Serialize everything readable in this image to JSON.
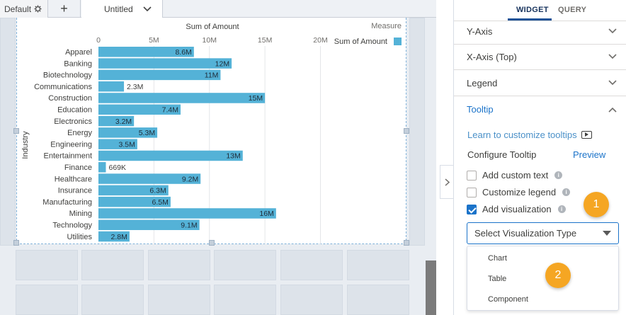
{
  "tabs": {
    "default_label": "Default",
    "add_label": "+",
    "untitled_label": "Untitled"
  },
  "panel": {
    "tabs": [
      "WIDGET",
      "QUERY"
    ],
    "sections": [
      "Y-Axis",
      "X-Axis (Top)",
      "Legend",
      "Tooltip"
    ],
    "learn_link": "Learn to customize tooltips",
    "configure_title": "Configure Tooltip",
    "preview_label": "Preview",
    "checkboxes": [
      {
        "label": "Add custom text",
        "checked": false
      },
      {
        "label": "Customize legend",
        "checked": false
      },
      {
        "label": "Add visualization",
        "checked": true
      }
    ],
    "select_placeholder": "Select Visualization Type",
    "dropdown_options": [
      "Chart",
      "Table",
      "Component"
    ],
    "badges": [
      "1",
      "2"
    ]
  },
  "colors": {
    "bar": "#54b2d7",
    "accent": "#1b73c9",
    "badge": "#f5a623"
  },
  "chart_data": {
    "type": "bar",
    "orientation": "horizontal",
    "title": "Sum of Amount",
    "xlabel": "",
    "ylabel": "Industry",
    "legend_title": "Measure",
    "legend_entry": "Sum of Amount",
    "legend_position": "top-right",
    "xlim": [
      0,
      20000000
    ],
    "x_ticks": [
      0,
      5000000,
      10000000,
      15000000,
      20000000
    ],
    "x_tick_labels": [
      "0",
      "5M",
      "10M",
      "15M",
      "20M"
    ],
    "categories": [
      "Apparel",
      "Banking",
      "Biotechnology",
      "Communications",
      "Construction",
      "Education",
      "Electronics",
      "Energy",
      "Engineering",
      "Entertainment",
      "Finance",
      "Healthcare",
      "Insurance",
      "Manufacturing",
      "Mining",
      "Technology",
      "Utilities"
    ],
    "values": [
      8600000,
      12000000,
      11000000,
      2300000,
      15000000,
      7400000,
      3200000,
      5300000,
      3500000,
      13000000,
      669000,
      9200000,
      6300000,
      6500000,
      16000000,
      9100000,
      2800000
    ],
    "value_labels": [
      "8.6M",
      "12M",
      "11M",
      "2.3M",
      "15M",
      "7.4M",
      "3.2M",
      "5.3M",
      "3.5M",
      "13M",
      "669K",
      "9.2M",
      "6.3M",
      "6.5M",
      "16M",
      "9.1M",
      "2.8M"
    ]
  }
}
